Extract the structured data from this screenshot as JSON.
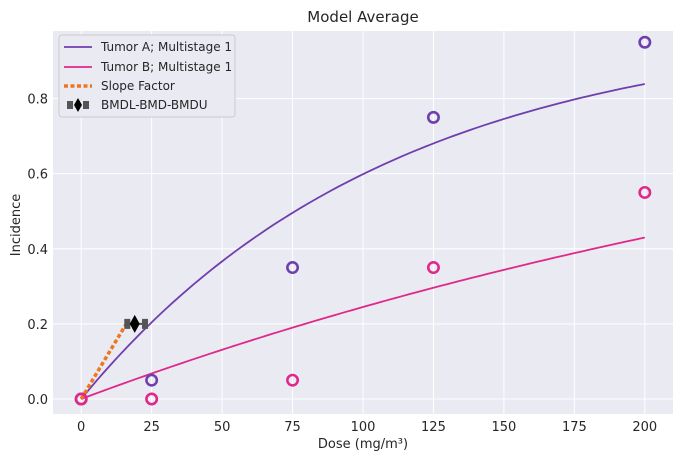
{
  "chart_data": {
    "type": "line",
    "title": "Model Average",
    "xlabel": "Dose (mg/m³)",
    "ylabel": "Incidence",
    "xlim": [
      -10,
      210
    ],
    "ylim": [
      -0.04,
      0.98
    ],
    "x_ticks": [
      0,
      25,
      50,
      75,
      100,
      125,
      150,
      175,
      200
    ],
    "y_ticks": [
      0.0,
      0.2,
      0.4,
      0.6,
      0.8
    ],
    "y_tick_labels": [
      "0.0",
      "0.2",
      "0.4",
      "0.6",
      "0.8"
    ],
    "grid": true,
    "legend_position": "top-left",
    "background": "#eaeaf2",
    "series": [
      {
        "name": "Tumor A; Multistage 1",
        "kind": "model-curve",
        "color": "#6f3fae",
        "model": "multistage-1",
        "background_response": 0.0,
        "slope_per_dose": 0.00913,
        "x_range": [
          0,
          200
        ]
      },
      {
        "name": "Tumor B; Multistage 1",
        "kind": "model-curve",
        "color": "#e0288a",
        "model": "multistage-1",
        "background_response": 0.0,
        "slope_per_dose": 0.00281,
        "x_range": [
          0,
          200
        ]
      },
      {
        "name": "Slope Factor",
        "kind": "dashed-line",
        "color": "#ee7621",
        "x": [
          0,
          16
        ],
        "y": [
          0.0,
          0.2
        ]
      }
    ],
    "observations": [
      {
        "series": "Tumor A; Multistage 1",
        "color": "#6f3fae",
        "x": [
          0,
          25,
          75,
          125,
          200
        ],
        "y": [
          0.0,
          0.05,
          0.35,
          0.75,
          0.95
        ]
      },
      {
        "series": "Tumor B; Multistage 1",
        "color": "#e0288a",
        "x": [
          0,
          25,
          75,
          125,
          200
        ],
        "y": [
          0.0,
          0.0,
          0.05,
          0.35,
          0.55
        ]
      }
    ],
    "bmd_marker": {
      "name": "BMDL-BMD-BMDU",
      "color": "#000000",
      "bar_color": "#555555",
      "bmdl": 16,
      "bmd": 19,
      "bmdu": 23,
      "y": 0.2
    }
  }
}
